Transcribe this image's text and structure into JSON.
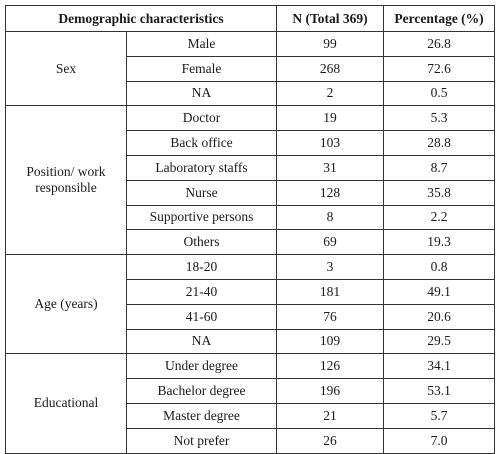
{
  "table": {
    "headers": [
      "Demographic characteristics",
      "N (Total 369)",
      "Percentage (%)"
    ],
    "groups": [
      {
        "name": "Sex",
        "rows": [
          {
            "label": "Male",
            "n": "99",
            "pct": "26.8"
          },
          {
            "label": "Female",
            "n": "268",
            "pct": "72.6"
          },
          {
            "label": "NA",
            "n": "2",
            "pct": "0.5"
          }
        ]
      },
      {
        "name": "Position/ work responsible",
        "rows": [
          {
            "label": "Doctor",
            "n": "19",
            "pct": "5.3"
          },
          {
            "label": "Back office",
            "n": "103",
            "pct": "28.8"
          },
          {
            "label": "Laboratory staffs",
            "n": "31",
            "pct": "8.7"
          },
          {
            "label": "Nurse",
            "n": "128",
            "pct": "35.8"
          },
          {
            "label": "Supportive persons",
            "n": "8",
            "pct": "2.2"
          },
          {
            "label": "Others",
            "n": "69",
            "pct": "19.3"
          }
        ]
      },
      {
        "name": "Age (years)",
        "rows": [
          {
            "label": "18-20",
            "n": "3",
            "pct": "0.8"
          },
          {
            "label": "21-40",
            "n": "181",
            "pct": "49.1"
          },
          {
            "label": "41-60",
            "n": "76",
            "pct": "20.6"
          },
          {
            "label": "NA",
            "n": "109",
            "pct": "29.5"
          }
        ]
      },
      {
        "name": "Educational",
        "rows": [
          {
            "label": "Under degree",
            "n": "126",
            "pct": "34.1"
          },
          {
            "label": "Bachelor degree",
            "n": "196",
            "pct": "53.1"
          },
          {
            "label": "Master degree",
            "n": "21",
            "pct": "5.7"
          },
          {
            "label": "Not prefer",
            "n": "26",
            "pct": "7.0"
          }
        ]
      }
    ]
  }
}
